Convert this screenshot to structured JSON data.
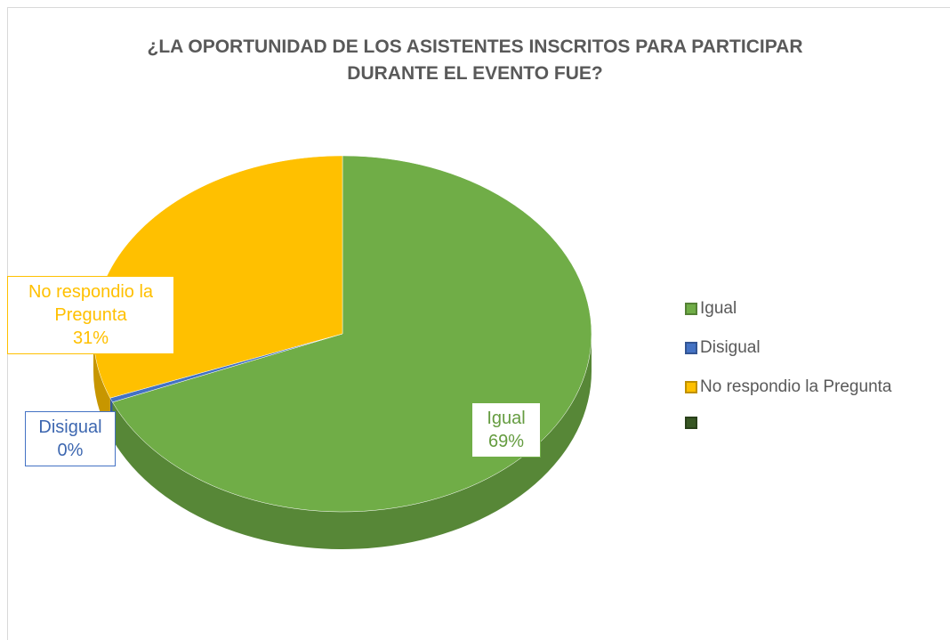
{
  "chart_data": {
    "type": "pie3d",
    "title": "¿LA OPORTUNIDAD DE LOS ASISTENTES INSCRITOS PARA PARTICIPAR DURANTE EL EVENTO FUE?",
    "categories": [
      "Igual",
      "Disigual",
      "No respondio la Pregunta",
      null
    ],
    "values": [
      69,
      0.4,
      31,
      0
    ],
    "value_labels": [
      "69%",
      "0%",
      "31%",
      null
    ],
    "colors": [
      "#70ad47",
      "#4472c4",
      "#ffc000",
      "#375623"
    ],
    "legend": "right"
  }
}
